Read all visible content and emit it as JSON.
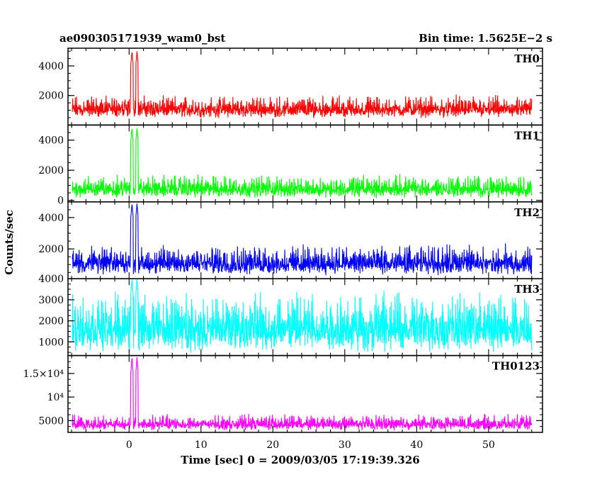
{
  "chart_data": {
    "type": "line",
    "title_left": "ae090305171939_wam0_bst",
    "title_right": "Bin time: 1.5625E−2 s",
    "xlabel": "Time [sec] 0 = 2009/03/05 17:19:39.326",
    "ylabel": "Counts/sec",
    "xlim": [
      -8.5,
      57.5
    ],
    "x_range": [
      -7.9,
      56.0
    ],
    "x_ticks": [
      0,
      10,
      20,
      30,
      40,
      50
    ],
    "x_tick_labels": [
      "0",
      "10",
      "20",
      "30",
      "40",
      "50"
    ],
    "burst_peak_times": [
      0.4,
      1.1
    ],
    "panels": [
      {
        "name": "TH0",
        "color": "#ff0000",
        "ylim": [
          0,
          5200
        ],
        "y_ticks": [
          2000,
          4000
        ],
        "y_tick_labels": [
          "2000",
          "4000"
        ],
        "baseline": 1000,
        "noise_low": 450,
        "noise_high": 2100,
        "peak": 5000
      },
      {
        "name": "TH1",
        "color": "#00ff00",
        "ylim": [
          -100,
          5000
        ],
        "y_ticks": [
          0,
          2000,
          4000
        ],
        "y_tick_labels": [
          "0",
          "2000",
          "4000"
        ],
        "baseline": 700,
        "noise_low": 150,
        "noise_high": 1800,
        "peak": 4800
      },
      {
        "name": "TH2",
        "color": "#0000ff",
        "ylim": [
          100,
          5000
        ],
        "y_ticks": [
          2000,
          4000
        ],
        "y_tick_labels": [
          "2000",
          "4000"
        ],
        "baseline": 1000,
        "noise_low": 300,
        "noise_high": 2400,
        "peak": 4900
      },
      {
        "name": "TH3",
        "color": "#00ffff",
        "ylim": [
          350,
          4000
        ],
        "y_ticks": [
          1000,
          2000,
          3000,
          4000
        ],
        "y_tick_labels": [
          "1000",
          "2000",
          "3000",
          "4000"
        ],
        "baseline": 1700,
        "noise_low": 450,
        "noise_high": 3600,
        "peak": 4000
      },
      {
        "name": "TH0123",
        "color": "#ff00ff",
        "ylim": [
          2500,
          18800
        ],
        "y_ticks": [
          5000,
          10000,
          15000
        ],
        "y_tick_labels": [
          "5000",
          "10⁴",
          "1.5×10⁴"
        ],
        "baseline": 4300,
        "noise_low": 2900,
        "noise_high": 6500,
        "peak": 18500
      }
    ]
  }
}
